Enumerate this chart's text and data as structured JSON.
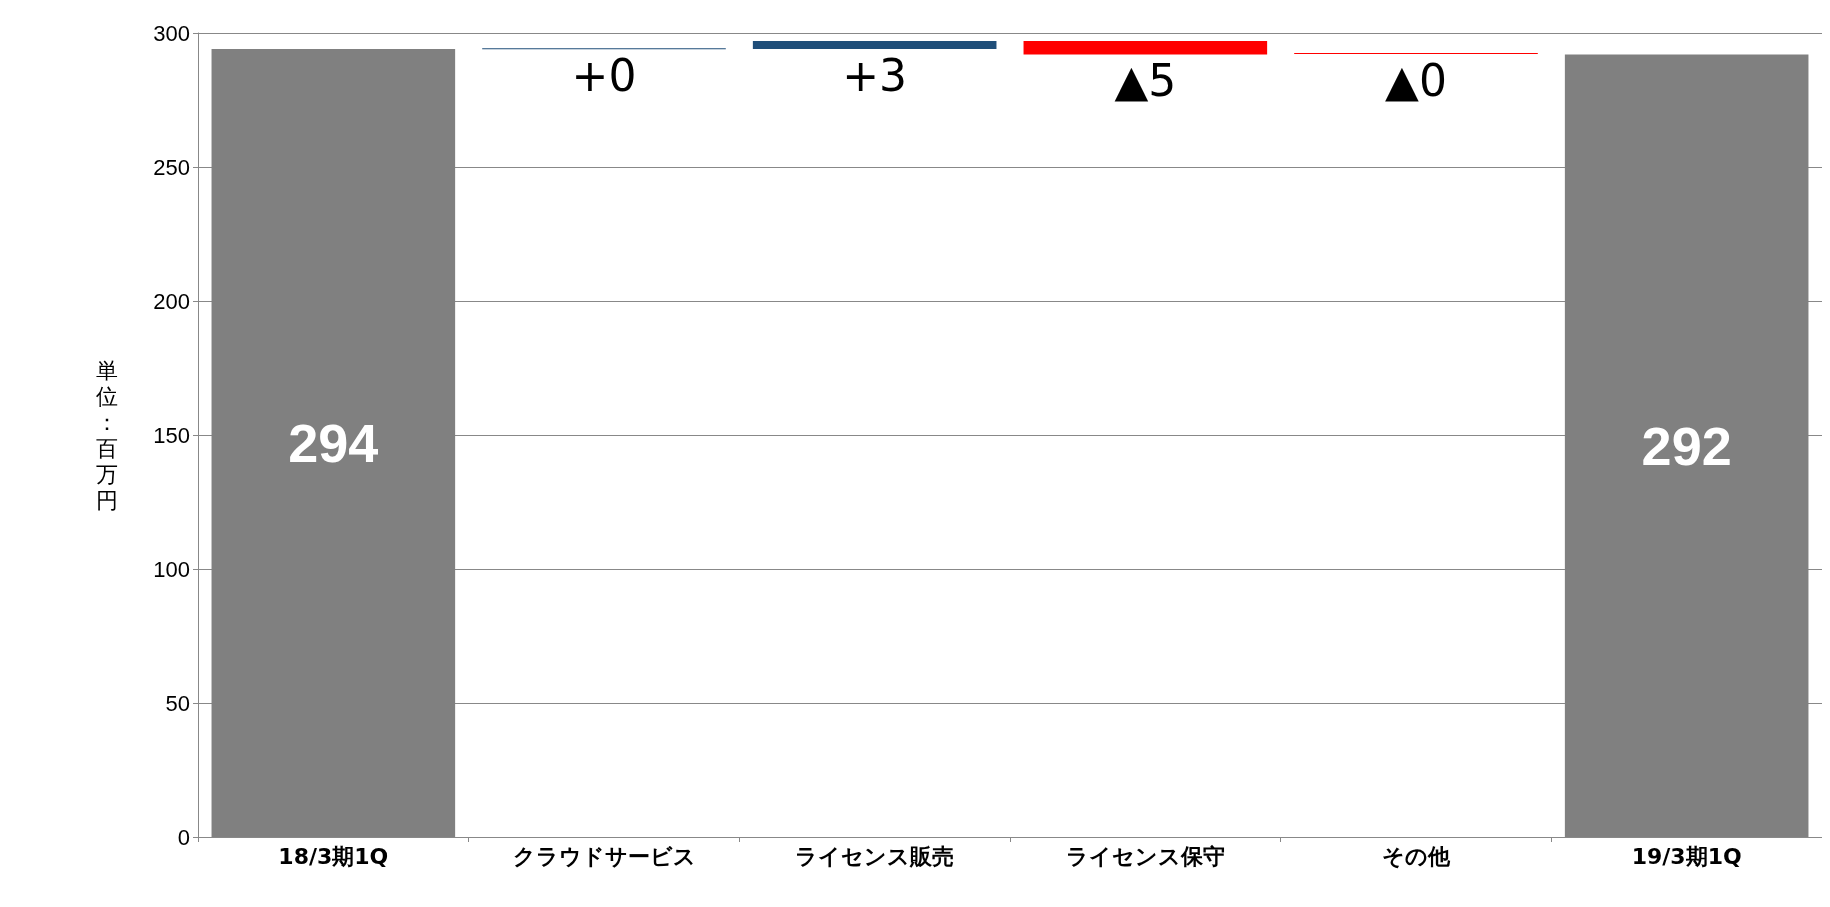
{
  "chart_data": {
    "type": "bar",
    "ylabel": "単位：百万円",
    "categories": [
      "18/3期1Q",
      "クラウドサービス",
      "ライセンス販売",
      "ライセンス保守",
      "その他",
      "19/3期1Q"
    ],
    "values": [
      294,
      0.3,
      3,
      -5,
      -0.3,
      292
    ],
    "base": [
      0,
      294,
      294,
      297,
      292.5,
      0
    ],
    "colors": [
      "#808080",
      "#1f4e79",
      "#1f4e79",
      "#ff0000",
      "#ff0000",
      "#808080"
    ],
    "value_labels": [
      "294",
      "+0",
      "+3",
      "▲5",
      "▲0",
      "292"
    ],
    "ylim": [
      0,
      300
    ],
    "yticks": [
      0,
      50,
      100,
      150,
      200,
      250,
      300
    ],
    "grid": "y"
  }
}
